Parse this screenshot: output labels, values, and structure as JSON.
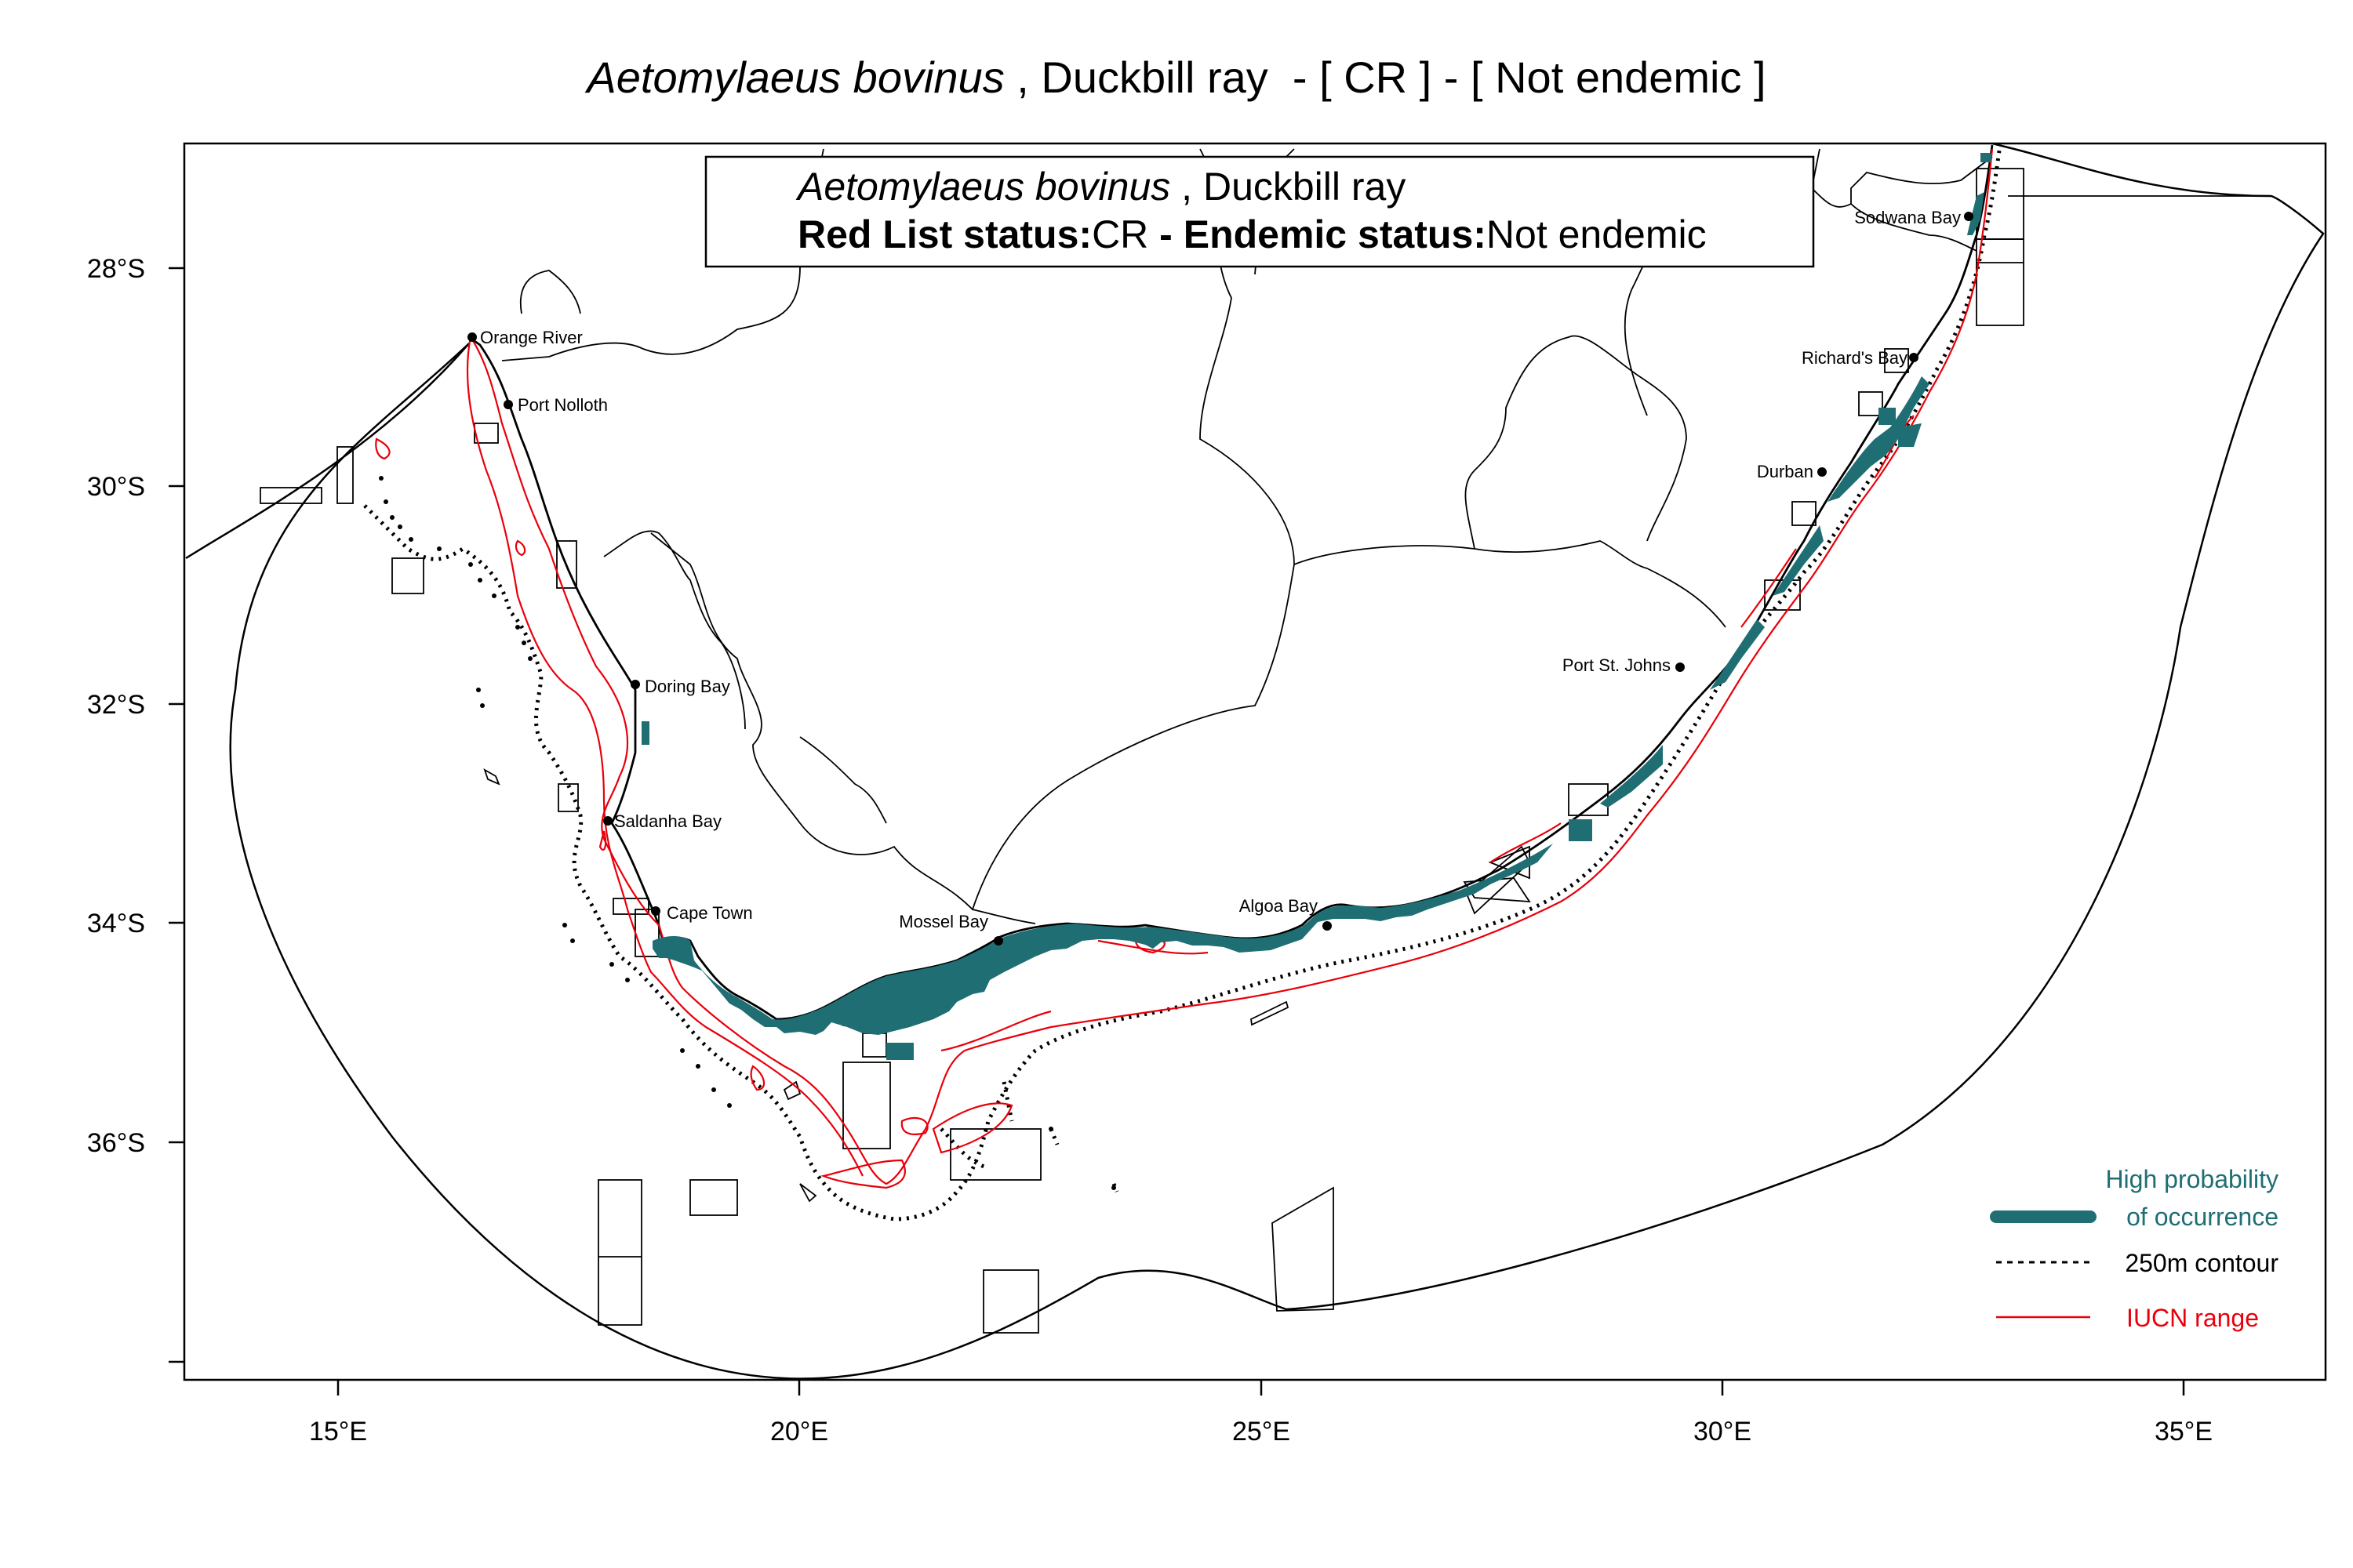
{
  "title": {
    "species": "Aetomylaeus bovinus",
    "rest": " , Duckbill ray  - [ CR ] - [ Not endemic ]"
  },
  "info_box": {
    "species": "Aetomylaeus bovinus",
    "common": " , Duckbill ray",
    "redlist_label": "Red List status:",
    "redlist_value": "CR",
    "endemic_label": " - Endemic status:",
    "endemic_value": "Not endemic"
  },
  "axes": {
    "lon_ticks": [
      "15°E",
      "20°E",
      "25°E",
      "30°E",
      "35°E"
    ],
    "lat_ticks": [
      "28°S",
      "30°S",
      "32°S",
      "34°S",
      "36°S"
    ]
  },
  "cities": [
    {
      "name": "Orange River"
    },
    {
      "name": "Port Nolloth"
    },
    {
      "name": "Doring Bay"
    },
    {
      "name": "Saldanha Bay"
    },
    {
      "name": "Cape Town"
    },
    {
      "name": "Mossel Bay"
    },
    {
      "name": "Algoa Bay"
    },
    {
      "name": "Port St. Johns"
    },
    {
      "name": "Durban"
    },
    {
      "name": "Richard's Bay"
    },
    {
      "name": "Sodwana Bay"
    }
  ],
  "legend": {
    "high_prob_line1": "High probability",
    "high_prob_line2": "of occurrence",
    "contour": "250m contour",
    "iucn": "IUCN range"
  },
  "colors": {
    "occurrence": "#1f6e73",
    "iucn": "#e8000b",
    "contour": "#000000"
  }
}
